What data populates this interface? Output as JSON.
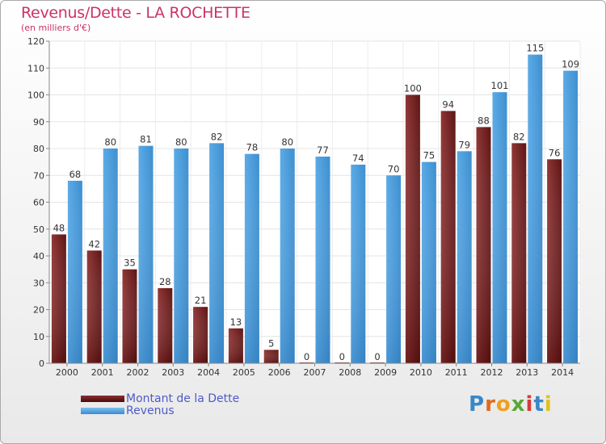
{
  "title": "Revenus/Dette - LA ROCHETTE",
  "subtitle": "(en milliers d'€)",
  "logo": {
    "text": "Proxiti",
    "colors": [
      "#3a87c8",
      "#e06a1c",
      "#f0a020",
      "#58a838",
      "#d63a3a",
      "#3a87c8",
      "#e0c020"
    ]
  },
  "colors": {
    "debt": "#6e1a1a",
    "debt_light": "#8a3030",
    "revenue": "#4d9fde",
    "title": "#cc3366",
    "legend_text": "#4f5ac8"
  },
  "legend": [
    {
      "label": "Montant de la Dette",
      "key": "debt"
    },
    {
      "label": "Revenus",
      "key": "revenue"
    }
  ],
  "chart_data": {
    "type": "bar",
    "title": "Revenus/Dette - LA ROCHETTE",
    "ylabel": "(en milliers d'€)",
    "xlabel": "",
    "ylim": [
      0,
      120
    ],
    "yticks": [
      0,
      10,
      20,
      30,
      40,
      50,
      60,
      70,
      80,
      90,
      100,
      110,
      120
    ],
    "grid": true,
    "legend_position": "bottom-left",
    "categories": [
      "2000",
      "2001",
      "2002",
      "2003",
      "2004",
      "2005",
      "2006",
      "2007",
      "2008",
      "2009",
      "2010",
      "2011",
      "2012",
      "2013",
      "2014"
    ],
    "series": [
      {
        "name": "Montant de la Dette",
        "values": [
          48,
          42,
          35,
          28,
          21,
          13,
          5,
          0,
          0,
          0,
          100,
          94,
          88,
          82,
          76
        ]
      },
      {
        "name": "Revenus",
        "values": [
          68,
          80,
          81,
          80,
          82,
          78,
          80,
          77,
          74,
          70,
          75,
          79,
          101,
          115,
          109
        ]
      }
    ]
  }
}
